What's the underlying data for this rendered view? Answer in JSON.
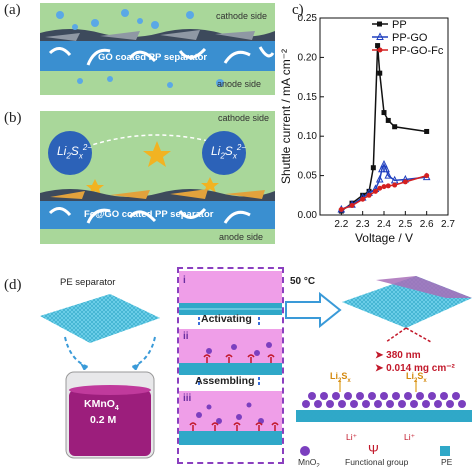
{
  "panel_labels": {
    "a": "(a)",
    "b": "(b)",
    "c": "c)",
    "d": "(d)"
  },
  "panel_a": {
    "cathode": "cathode side",
    "separator": "GO coated PP separator",
    "anode": "anode side"
  },
  "panel_b": {
    "cathode": "cathode side",
    "separator": "Fc@GO coated PP separator",
    "anode": "anode side",
    "polysulfide_base": "Li",
    "polysulfide_sub": "2",
    "polysulfide_mid": "S",
    "polysulfide_sub2": "x",
    "polysulfide_sup": "2−"
  },
  "chart_data": {
    "type": "line",
    "xlabel": "Voltage / V",
    "ylabel": "Shuttle current / mA cm⁻²",
    "xlim": [
      2.1,
      2.7
    ],
    "ylim": [
      0.0,
      0.25
    ],
    "xticks": [
      "2.2",
      "2.3",
      "2.4",
      "2.5",
      "2.6",
      "2.7"
    ],
    "yticks": [
      "0.00",
      "0.05",
      "0.10",
      "0.15",
      "0.20",
      "0.25"
    ],
    "legend_position": "top-right",
    "series": [
      {
        "name": "PP",
        "color": "#111111",
        "marker": "square",
        "x": [
          2.2,
          2.25,
          2.3,
          2.33,
          2.35,
          2.37,
          2.38,
          2.4,
          2.42,
          2.45,
          2.6
        ],
        "y": [
          0.005,
          0.015,
          0.025,
          0.03,
          0.06,
          0.215,
          0.18,
          0.13,
          0.12,
          0.112,
          0.106
        ]
      },
      {
        "name": "PP-GO",
        "color": "#1f3fbf",
        "marker": "triangle",
        "x": [
          2.2,
          2.25,
          2.3,
          2.33,
          2.36,
          2.38,
          2.39,
          2.4,
          2.41,
          2.42,
          2.45,
          2.5,
          2.6
        ],
        "y": [
          0.007,
          0.013,
          0.022,
          0.028,
          0.033,
          0.045,
          0.058,
          0.064,
          0.058,
          0.05,
          0.044,
          0.045,
          0.048
        ]
      },
      {
        "name": "PP-GO-Fc",
        "color": "#d42020",
        "marker": "circle",
        "x": [
          2.2,
          2.25,
          2.3,
          2.33,
          2.36,
          2.38,
          2.4,
          2.42,
          2.45,
          2.5,
          2.6
        ],
        "y": [
          0.007,
          0.012,
          0.02,
          0.025,
          0.03,
          0.034,
          0.036,
          0.037,
          0.038,
          0.042,
          0.05
        ]
      }
    ]
  },
  "panel_d": {
    "pe_separator": "PE separator",
    "kmno4_line1": "KMnO",
    "kmno4_sub": "4",
    "kmno4_line2": "0.2 M",
    "step_i": "i",
    "step_ii": "ii",
    "step_iii": "iii",
    "activating": "Activating",
    "assembling": "Assembling",
    "temperature": "50 °C",
    "thickness": "380 nm",
    "loading": "0.014 mg cm⁻²",
    "li2sx_left": "Li",
    "li2sx_sub": "2",
    "li2sx_s": "S",
    "li2sx_x": "x",
    "li_plus_left": "Li⁺",
    "li_plus_right": "Li⁺",
    "legend_mno2": "MnO",
    "legend_mno2_sub": "2",
    "legend_functional": "Functional group",
    "legend_pe": "PE",
    "colors": {
      "pink": "#e98fe3",
      "teal": "#2fa8c8",
      "purple": "#7b3fbf",
      "red": "#c2182a",
      "separator_blue": "#39c2e6"
    }
  }
}
